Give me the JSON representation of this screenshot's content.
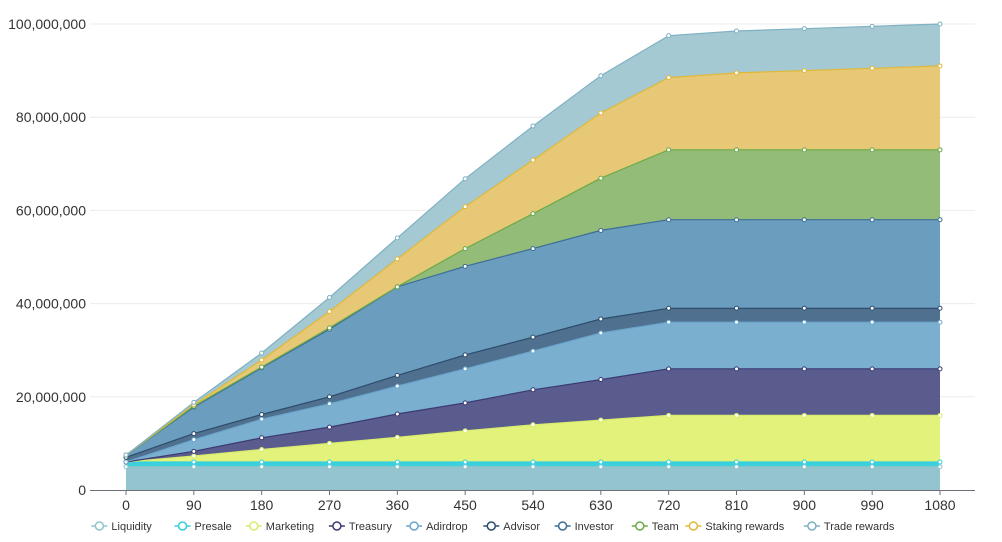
{
  "chart_data": {
    "type": "area",
    "stacked": true,
    "title": "",
    "xlabel": "",
    "ylabel": "",
    "x": [
      0,
      90,
      180,
      270,
      360,
      450,
      540,
      630,
      720,
      810,
      900,
      990,
      1080
    ],
    "x_tick_labels": [
      "0",
      "90",
      "180",
      "270",
      "360",
      "450",
      "540",
      "630",
      "720",
      "810",
      "900",
      "990",
      "1080"
    ],
    "ylim": [
      0,
      100000000
    ],
    "y_ticks": [
      0,
      20000000,
      40000000,
      60000000,
      80000000,
      100000000
    ],
    "y_tick_labels": [
      "0",
      "20,000,000",
      "40,000,000",
      "60,000,000",
      "80,000,000",
      "100,000,000"
    ],
    "grid": "horizontal",
    "legend": "bottom",
    "series": [
      {
        "name": "Liquidity",
        "color": "#8fc5cf",
        "fill": "#94c4cd",
        "values": [
          5000000,
          5000000,
          5000000,
          5000000,
          5000000,
          5000000,
          5000000,
          5000000,
          5000000,
          5000000,
          5000000,
          5000000,
          5000000
        ]
      },
      {
        "name": "Presale",
        "color": "#35d0de",
        "fill": "#3cd0dc",
        "values": [
          1000000,
          1000000,
          1000000,
          1000000,
          1000000,
          1000000,
          1000000,
          1000000,
          1000000,
          1000000,
          1000000,
          1000000,
          1000000
        ]
      },
      {
        "name": "Marketing",
        "color": "#d8ec6e",
        "fill": "#e2f27a",
        "values": [
          0,
          1300000,
          2700000,
          4000000,
          5300000,
          6700000,
          8000000,
          9000000,
          10000000,
          10000000,
          10000000,
          10000000,
          10000000
        ]
      },
      {
        "name": "Treasury",
        "color": "#3b3a72",
        "fill": "#5b5c8e",
        "values": [
          0,
          1000000,
          2500000,
          3500000,
          5000000,
          6000000,
          7500000,
          8700000,
          10000000,
          10000000,
          10000000,
          10000000,
          10000000
        ]
      },
      {
        "name": "Adirdrop",
        "color": "#6aa5cc",
        "fill": "#7aafd0",
        "values": [
          0,
          2500000,
          4000000,
          5000000,
          6000000,
          7300000,
          8300000,
          10000000,
          10000000,
          10000000,
          10000000,
          10000000,
          10000000
        ]
      },
      {
        "name": "Advisor",
        "color": "#2d4c6b",
        "fill": "#50708f",
        "values": [
          1000000,
          1300000,
          1000000,
          1500000,
          2300000,
          3000000,
          3000000,
          3000000,
          3000000,
          3000000,
          3000000,
          3000000,
          3000000
        ]
      },
      {
        "name": "Investor",
        "color": "#3d6e97",
        "fill": "#6b9dbf",
        "values": [
          500000,
          5700000,
          10000000,
          14500000,
          19000000,
          19000000,
          19000000,
          19000000,
          19000000,
          19000000,
          19000000,
          19000000,
          19000000
        ]
      },
      {
        "name": "Team",
        "color": "#6caa49",
        "fill": "#93bc78",
        "values": [
          0,
          200000,
          200000,
          300000,
          0,
          3800000,
          7500000,
          11200000,
          15000000,
          15000000,
          15000000,
          15000000,
          15000000
        ]
      },
      {
        "name": "Staking rewards",
        "color": "#dfb93a",
        "fill": "#e6c877",
        "values": [
          0,
          300000,
          1500000,
          3500000,
          6000000,
          9000000,
          11500000,
          14000000,
          15500000,
          16500000,
          17000000,
          17500000,
          18000000
        ]
      },
      {
        "name": "Trade rewards",
        "color": "#7fb1c2",
        "fill": "#a4c9d2",
        "values": [
          0,
          500000,
          1500000,
          3000000,
          4500000,
          6000000,
          7300000,
          8000000,
          9000000,
          9000000,
          9000000,
          9000000,
          9000000
        ]
      }
    ]
  }
}
